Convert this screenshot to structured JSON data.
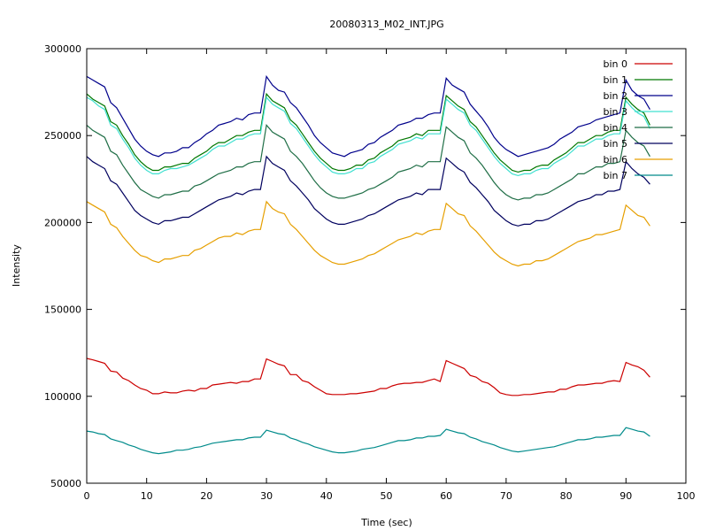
{
  "chart_data": {
    "type": "line",
    "title": "20080313_M02_INT.JPG",
    "xlabel": "Time (sec)",
    "ylabel": "Intensity",
    "xlim": [
      0,
      100
    ],
    "ylim": [
      50000,
      300000
    ],
    "xticks": [
      0,
      10,
      20,
      30,
      40,
      50,
      60,
      70,
      80,
      90,
      100
    ],
    "yticks": [
      50000,
      100000,
      150000,
      200000,
      250000,
      300000
    ],
    "legend_position": "top-right",
    "grid": false,
    "x": [
      0,
      1,
      2,
      3,
      4,
      5,
      6,
      7,
      8,
      9,
      10,
      11,
      12,
      13,
      14,
      15,
      16,
      17,
      18,
      19,
      20,
      21,
      22,
      23,
      24,
      25,
      26,
      27,
      28,
      29,
      30,
      31,
      32,
      33,
      34,
      35,
      36,
      37,
      38,
      39,
      40,
      41,
      42,
      43,
      44,
      45,
      46,
      47,
      48,
      49,
      50,
      51,
      52,
      53,
      54,
      55,
      56,
      57,
      58,
      59,
      60,
      61,
      62,
      63,
      64,
      65,
      66,
      67,
      68,
      69,
      70,
      71,
      72,
      73,
      74,
      75,
      76,
      77,
      78,
      79,
      80,
      81,
      82,
      83,
      84,
      85,
      86,
      87,
      88,
      89,
      90,
      91,
      92,
      93,
      94
    ],
    "series": [
      {
        "name": "bin 0",
        "color": "#cc0000",
        "values": [
          121800,
          121000,
          120000,
          119000,
          114500,
          114000,
          110500,
          109000,
          106500,
          104500,
          103500,
          101500,
          101500,
          102500,
          102000,
          102000,
          103000,
          103500,
          103000,
          104500,
          104500,
          106500,
          107000,
          107500,
          108000,
          107500,
          108500,
          108500,
          110000,
          110000,
          121500,
          120000,
          118500,
          117500,
          112500,
          112500,
          109000,
          108000,
          105500,
          103500,
          101500,
          101000,
          101000,
          101000,
          101500,
          101500,
          102000,
          102500,
          103000,
          104500,
          104500,
          106000,
          107000,
          107500,
          107500,
          108000,
          108000,
          109000,
          110000,
          108500,
          120500,
          119000,
          117500,
          116000,
          112000,
          111000,
          108500,
          107500,
          105000,
          102000,
          101000,
          100500,
          100500,
          101000,
          101000,
          101500,
          102000,
          102500,
          102500,
          104000,
          104000,
          105500,
          106500,
          106500,
          107000,
          107500,
          107500,
          108500,
          109000,
          108500,
          119500,
          118000,
          117000,
          115000,
          111000
        ]
      },
      {
        "name": "bin 1",
        "color": "#007700",
        "values": [
          274000,
          271000,
          269000,
          267000,
          258000,
          256000,
          250000,
          245000,
          239000,
          235000,
          232000,
          230000,
          230000,
          232000,
          232000,
          233000,
          234000,
          234000,
          237000,
          239000,
          241000,
          244000,
          246000,
          246000,
          248000,
          250000,
          250000,
          252000,
          253000,
          253000,
          274000,
          270000,
          268000,
          266000,
          259000,
          256000,
          251000,
          246000,
          241000,
          237000,
          234000,
          231000,
          230000,
          230000,
          231000,
          233000,
          233000,
          236000,
          237000,
          240000,
          242000,
          244000,
          247000,
          248000,
          249000,
          251000,
          250000,
          253000,
          253000,
          253000,
          273000,
          270000,
          267000,
          265000,
          258000,
          255000,
          250000,
          245000,
          240000,
          236000,
          233000,
          230000,
          229000,
          230000,
          230000,
          232000,
          233000,
          233000,
          236000,
          238000,
          240000,
          243000,
          246000,
          246000,
          248000,
          250000,
          250000,
          252000,
          253000,
          253000,
          272000,
          268000,
          265000,
          263000,
          256000
        ]
      },
      {
        "name": "bin 2",
        "color": "#00008b",
        "values": [
          284000,
          282000,
          280000,
          278000,
          269000,
          266000,
          260000,
          254000,
          248000,
          244000,
          241000,
          239000,
          238000,
          240000,
          240000,
          241000,
          243000,
          243000,
          246000,
          248000,
          251000,
          253000,
          256000,
          257000,
          258000,
          260000,
          259000,
          262000,
          263000,
          263000,
          284000,
          279000,
          276000,
          275000,
          269000,
          266000,
          261000,
          256000,
          250000,
          246000,
          243000,
          240000,
          239000,
          238000,
          240000,
          241000,
          242000,
          245000,
          246000,
          249000,
          251000,
          253000,
          256000,
          257000,
          258000,
          260000,
          260000,
          262000,
          263000,
          263000,
          283000,
          279000,
          277000,
          275000,
          268000,
          264000,
          260000,
          255000,
          249000,
          245000,
          242000,
          240000,
          238000,
          239000,
          240000,
          241000,
          242000,
          243000,
          245000,
          248000,
          250000,
          252000,
          255000,
          256000,
          257000,
          259000,
          260000,
          261000,
          262000,
          263000,
          282000,
          276000,
          273000,
          271000,
          265000
        ]
      },
      {
        "name": "bin 3",
        "color": "#40e0d0",
        "values": [
          272000,
          270000,
          267000,
          265000,
          256000,
          254000,
          248000,
          243000,
          237000,
          233000,
          230000,
          228000,
          228000,
          230000,
          231000,
          231000,
          232000,
          233000,
          235000,
          237000,
          239000,
          242000,
          244000,
          244000,
          246000,
          248000,
          248000,
          250000,
          251000,
          251000,
          272000,
          268000,
          266000,
          264000,
          257000,
          254000,
          249000,
          244000,
          239000,
          235000,
          232000,
          229000,
          228000,
          228000,
          229000,
          231000,
          231000,
          234000,
          235000,
          238000,
          240000,
          242000,
          245000,
          246000,
          247000,
          249000,
          248000,
          251000,
          251000,
          251000,
          271000,
          268000,
          265000,
          263000,
          256000,
          253000,
          248000,
          243000,
          238000,
          234000,
          231000,
          228000,
          227000,
          228000,
          228000,
          230000,
          231000,
          231000,
          234000,
          236000,
          238000,
          241000,
          244000,
          244000,
          246000,
          248000,
          248000,
          250000,
          251000,
          251000,
          270000,
          266000,
          263000,
          261000,
          254000
        ]
      },
      {
        "name": "bin 4",
        "color": "#1f6e46",
        "values": [
          256000,
          253000,
          251000,
          249000,
          241000,
          239000,
          233000,
          228000,
          223000,
          219000,
          217000,
          215000,
          214000,
          216000,
          216000,
          217000,
          218000,
          218000,
          221000,
          222000,
          224000,
          226000,
          228000,
          229000,
          230000,
          232000,
          232000,
          234000,
          235000,
          235000,
          256000,
          252000,
          250000,
          248000,
          241000,
          238000,
          234000,
          229000,
          224000,
          220000,
          217000,
          215000,
          214000,
          214000,
          215000,
          216000,
          217000,
          219000,
          220000,
          222000,
          224000,
          226000,
          229000,
          230000,
          231000,
          233000,
          232000,
          235000,
          235000,
          235000,
          255000,
          252000,
          249000,
          247000,
          240000,
          237000,
          233000,
          228000,
          223000,
          219000,
          216000,
          214000,
          213000,
          214000,
          214000,
          216000,
          216000,
          217000,
          219000,
          221000,
          223000,
          225000,
          228000,
          228000,
          230000,
          232000,
          232000,
          234000,
          234000,
          235000,
          253000,
          249000,
          246000,
          244000,
          238000
        ]
      },
      {
        "name": "bin 5",
        "color": "#00005e",
        "values": [
          238000,
          235000,
          233000,
          231000,
          224000,
          222000,
          217000,
          212000,
          207000,
          204000,
          202000,
          200000,
          199000,
          201000,
          201000,
          202000,
          203000,
          203000,
          205000,
          207000,
          209000,
          211000,
          213000,
          214000,
          215000,
          217000,
          216000,
          218000,
          219000,
          219000,
          238000,
          234000,
          232000,
          230000,
          224000,
          221000,
          217000,
          213000,
          208000,
          205000,
          202000,
          200000,
          199000,
          199000,
          200000,
          201000,
          202000,
          204000,
          205000,
          207000,
          209000,
          211000,
          213000,
          214000,
          215000,
          217000,
          216000,
          219000,
          219000,
          219000,
          237000,
          234000,
          231000,
          229000,
          223000,
          220000,
          216000,
          212000,
          207000,
          204000,
          201000,
          199000,
          198000,
          199000,
          199000,
          201000,
          201000,
          202000,
          204000,
          206000,
          208000,
          210000,
          212000,
          213000,
          214000,
          216000,
          216000,
          218000,
          218000,
          219000,
          235000,
          231000,
          228000,
          226000,
          222000
        ]
      },
      {
        "name": "bin 6",
        "color": "#e69f00",
        "values": [
          212000,
          210000,
          208000,
          206000,
          199000,
          197000,
          192000,
          188000,
          184000,
          181000,
          180000,
          178000,
          177000,
          179000,
          179000,
          180000,
          181000,
          181000,
          184000,
          185000,
          187000,
          189000,
          191000,
          192000,
          192000,
          194000,
          193000,
          195000,
          196000,
          196000,
          212000,
          208000,
          206000,
          205000,
          199000,
          196000,
          192000,
          188000,
          184000,
          181000,
          179000,
          177000,
          176000,
          176000,
          177000,
          178000,
          179000,
          181000,
          182000,
          184000,
          186000,
          188000,
          190000,
          191000,
          192000,
          194000,
          193000,
          195000,
          196000,
          196000,
          211000,
          208000,
          205000,
          204000,
          198000,
          195000,
          191000,
          187000,
          183000,
          180000,
          178000,
          176000,
          175000,
          176000,
          176000,
          178000,
          178000,
          179000,
          181000,
          183000,
          185000,
          187000,
          189000,
          190000,
          191000,
          193000,
          193000,
          194000,
          195000,
          196000,
          210000,
          207000,
          204000,
          203000,
          198000
        ]
      },
      {
        "name": "bin 7",
        "color": "#008b8b",
        "values": [
          80000,
          79500,
          78500,
          78000,
          75500,
          74500,
          73500,
          72000,
          71000,
          69500,
          68500,
          67500,
          67000,
          67500,
          68000,
          69000,
          69000,
          69500,
          70500,
          71000,
          72000,
          73000,
          73500,
          74000,
          74500,
          75000,
          75000,
          76000,
          76500,
          76500,
          80500,
          79500,
          78500,
          78000,
          76000,
          75000,
          73500,
          72500,
          71000,
          70000,
          69000,
          68000,
          67500,
          67500,
          68000,
          68500,
          69500,
          70000,
          70500,
          71500,
          72500,
          73500,
          74500,
          74500,
          75000,
          76000,
          76000,
          77000,
          77000,
          77500,
          81000,
          80000,
          79000,
          78500,
          76500,
          75500,
          74000,
          73000,
          72000,
          70500,
          69500,
          68500,
          68000,
          68500,
          69000,
          69500,
          70000,
          70500,
          71000,
          72000,
          73000,
          74000,
          75000,
          75000,
          75500,
          76500,
          76500,
          77000,
          77500,
          77500,
          82000,
          81000,
          80000,
          79500,
          77000
        ]
      }
    ]
  }
}
